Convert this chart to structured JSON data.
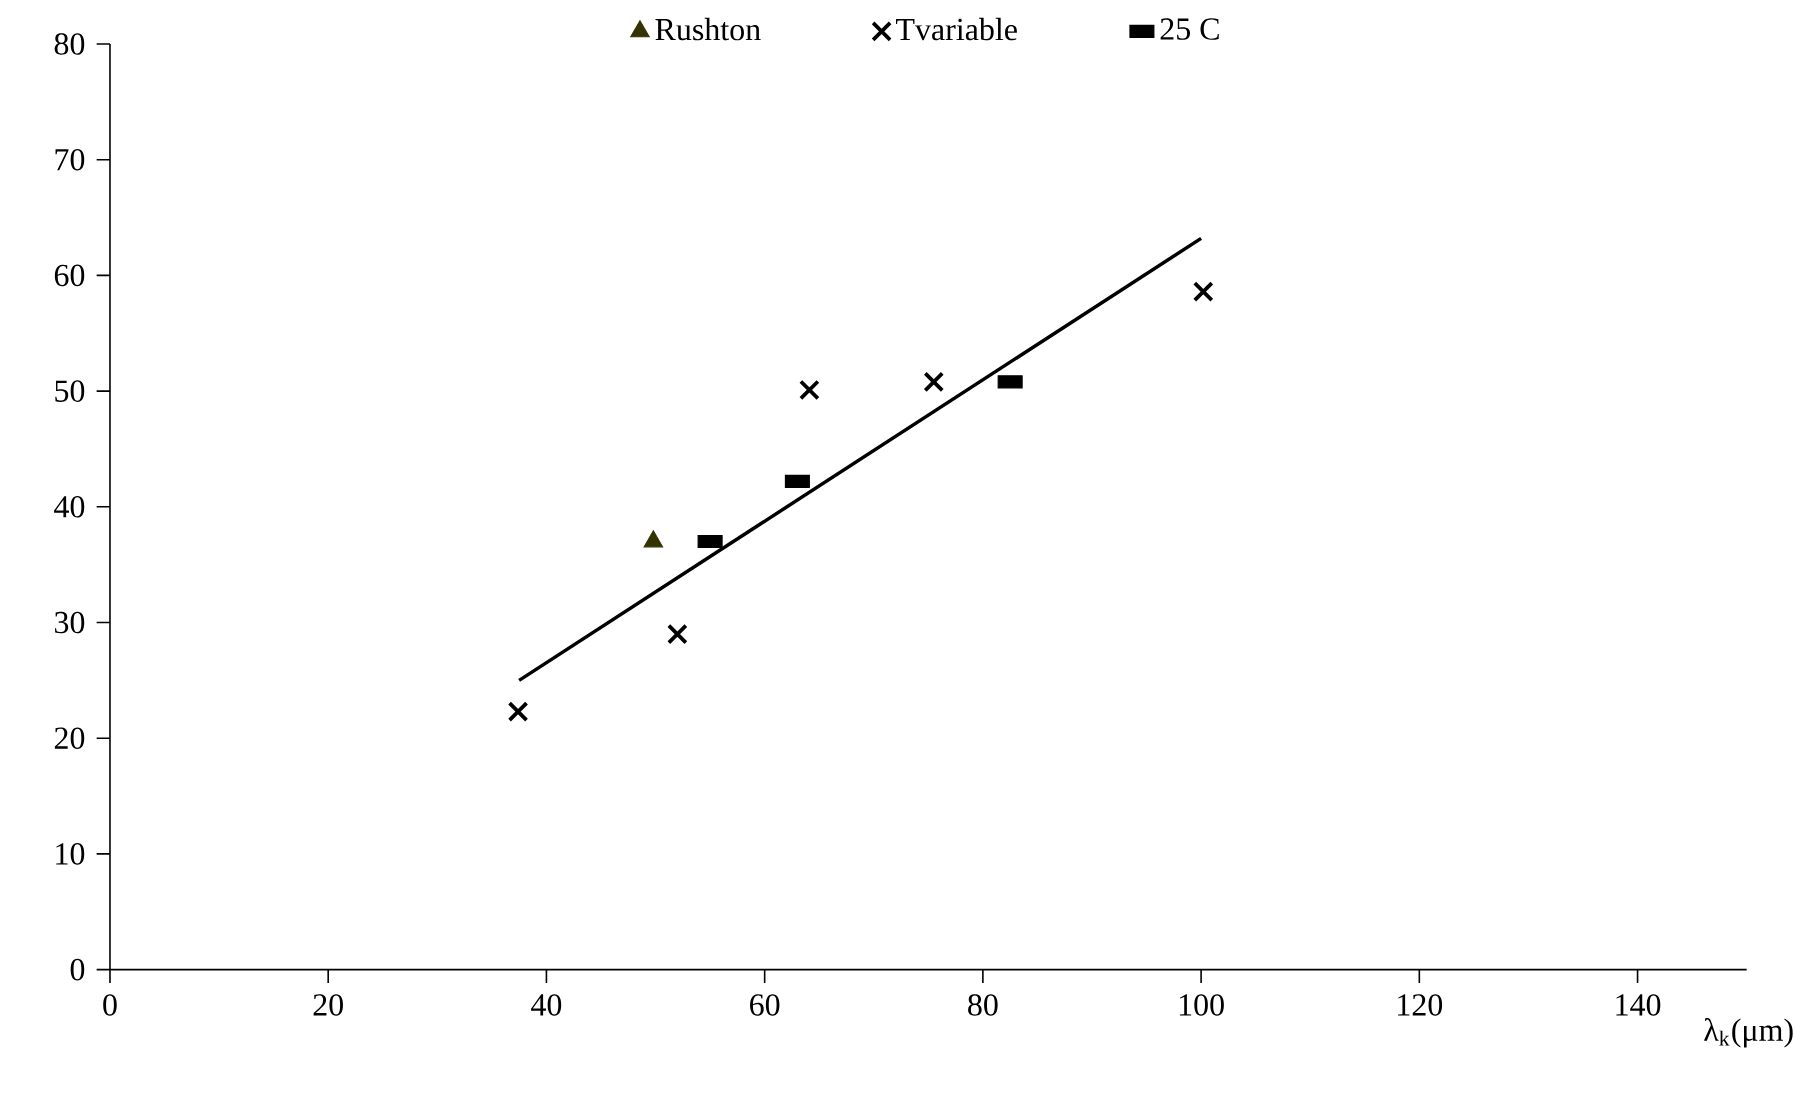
{
  "chart_data": {
    "type": "scatter",
    "xlabel": "λ$_{k}$(μm)",
    "xlim": [
      0,
      150
    ],
    "xticks": [
      0,
      20,
      40,
      60,
      80,
      100,
      120,
      140
    ],
    "ylim": [
      0,
      80
    ],
    "yticks": [
      0,
      10,
      20,
      30,
      40,
      50,
      60,
      70,
      80
    ],
    "grid": false,
    "legend": "top",
    "series": [
      {
        "name": "Rushton",
        "color": "#333300",
        "marker": "triangle",
        "x": [
          49.8
        ],
        "values": [
          37.0
        ]
      },
      {
        "name": "Tvariable",
        "color": "#000000",
        "marker": "cross",
        "x": [
          37.4,
          52.0,
          64.1,
          75.5,
          100.2
        ],
        "values": [
          22.3,
          29.0,
          50.1,
          50.8,
          58.6
        ]
      },
      {
        "name": "25 C",
        "color": "#000000",
        "marker": "square",
        "x": [
          55.0,
          63.0,
          82.5
        ],
        "values": [
          37.0,
          42.2,
          50.8
        ]
      },
      {
        "type": "line",
        "color": "#000000",
        "marker": "none",
        "x": [
          37.5,
          100.0
        ],
        "values": [
          25.0,
          63.2
        ]
      }
    ]
  }
}
